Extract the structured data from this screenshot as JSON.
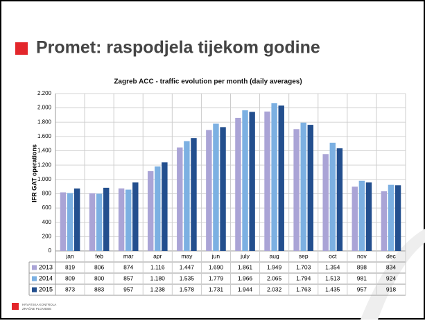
{
  "slide_title": "Promet: raspodjela tijekom godine",
  "logo": [
    "HRVATSKA KONTROLA",
    "ZRAČNE PLOVIDBE"
  ],
  "chart_data": {
    "type": "bar",
    "title": "Zagreb ACC - traffic evolution per month (daily averages)",
    "y_label": "IFR GAT operations",
    "categories": [
      "jan",
      "feb",
      "mar",
      "apr",
      "may",
      "jun",
      "july",
      "aug",
      "sep",
      "oct",
      "nov",
      "dec"
    ],
    "series": [
      {
        "name": "2013",
        "color": "#aaa4d6",
        "values": [
          819,
          806,
          874,
          1116,
          1447,
          1690,
          1861,
          1949,
          1703,
          1354,
          898,
          834
        ],
        "value_labels": [
          "819",
          "806",
          "874",
          "1.116",
          "1.447",
          "1.690",
          "1.861",
          "1.949",
          "1.703",
          "1.354",
          "898",
          "834"
        ]
      },
      {
        "name": "2014",
        "color": "#7cb0e2",
        "values": [
          809,
          800,
          857,
          1180,
          1535,
          1779,
          1966,
          2065,
          1794,
          1513,
          981,
          924
        ],
        "value_labels": [
          "809",
          "800",
          "857",
          "1.180",
          "1.535",
          "1.779",
          "1.966",
          "2.065",
          "1.794",
          "1.513",
          "981",
          "924"
        ]
      },
      {
        "name": "2015",
        "color": "#234f8e",
        "values": [
          873,
          883,
          957,
          1238,
          1578,
          1731,
          1944,
          2032,
          1763,
          1435,
          957,
          918
        ],
        "value_labels": [
          "873",
          "883",
          "957",
          "1.238",
          "1.578",
          "1.731",
          "1.944",
          "2.032",
          "1.763",
          "1.435",
          "957",
          "918"
        ]
      }
    ],
    "ylim": [
      0,
      2200
    ],
    "yticks": [
      0,
      200,
      400,
      600,
      800,
      {
        "value": 1000,
        "label": "1.000"
      },
      {
        "value": 1200,
        "label": "1.200"
      },
      {
        "value": 1400,
        "label": "1.400"
      },
      {
        "value": 1600,
        "label": "1.600"
      },
      {
        "value": 1800,
        "label": "1.800"
      },
      {
        "value": 2000,
        "label": "2.000"
      },
      {
        "value": 2200,
        "label": "2.200"
      }
    ],
    "grid": true
  }
}
